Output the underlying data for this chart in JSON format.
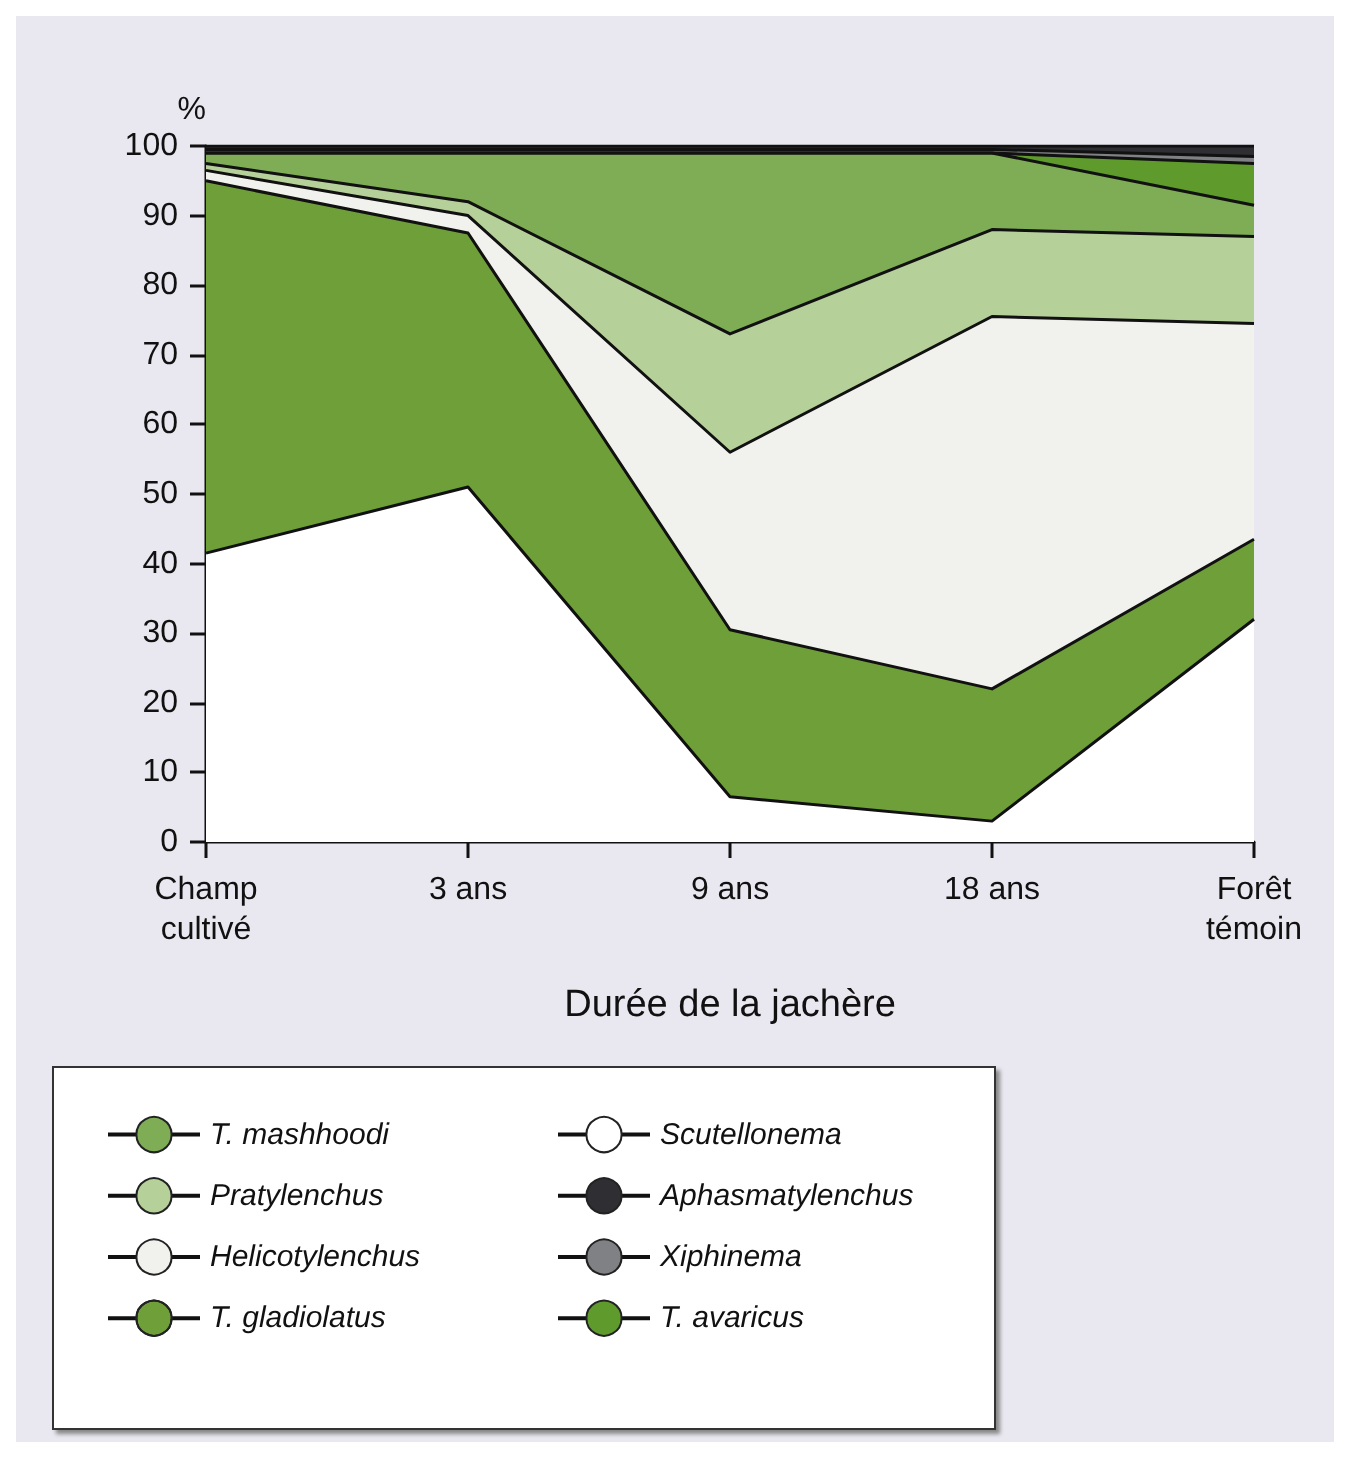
{
  "chart_data": {
    "type": "area",
    "stacked": true,
    "xlabel": "Durée de la jachère",
    "ylabel": "%",
    "categories": [
      "Champ\ncultivé",
      "3 ans",
      "9 ans",
      "18 ans",
      "Forêt\ntémoin"
    ],
    "ylim": [
      0,
      100
    ],
    "yticks": [
      0,
      10,
      20,
      30,
      40,
      50,
      60,
      70,
      80,
      90,
      100
    ],
    "grid": false,
    "legend": "bottom",
    "marker": "none",
    "line_style": "solid",
    "series": [
      {
        "name": "Scutellonema",
        "color": "#ffffff",
        "values": [
          41.5,
          51,
          6.5,
          3,
          32
        ]
      },
      {
        "name": "T. gladiolatus",
        "color": "#6f9f38",
        "values": [
          53.5,
          36.5,
          24,
          19,
          11.5
        ]
      },
      {
        "name": "Helicotylenchus",
        "color": "#f1f1ee",
        "values": [
          1.5,
          2.5,
          25.5,
          53.5,
          31
        ]
      },
      {
        "name": "Pratylenchus",
        "color": "#b6d09a",
        "values": [
          1,
          2,
          17,
          12.5,
          12.5
        ]
      },
      {
        "name": "T. mashhoodi",
        "color": "#7fad55",
        "values": [
          1.5,
          7,
          26,
          11,
          4.5
        ]
      },
      {
        "name": "T. avaricus",
        "color": "#5e9a2c",
        "values": [
          0,
          0,
          0,
          0,
          6
        ]
      },
      {
        "name": "Xiphinema",
        "color": "#808185",
        "values": [
          0.5,
          0.5,
          0.5,
          0.5,
          1
        ]
      },
      {
        "name": "Aphasmatylenchus",
        "color": "#2e2e33",
        "values": [
          0.5,
          0.5,
          0.5,
          0.5,
          1.5
        ]
      }
    ]
  }
}
